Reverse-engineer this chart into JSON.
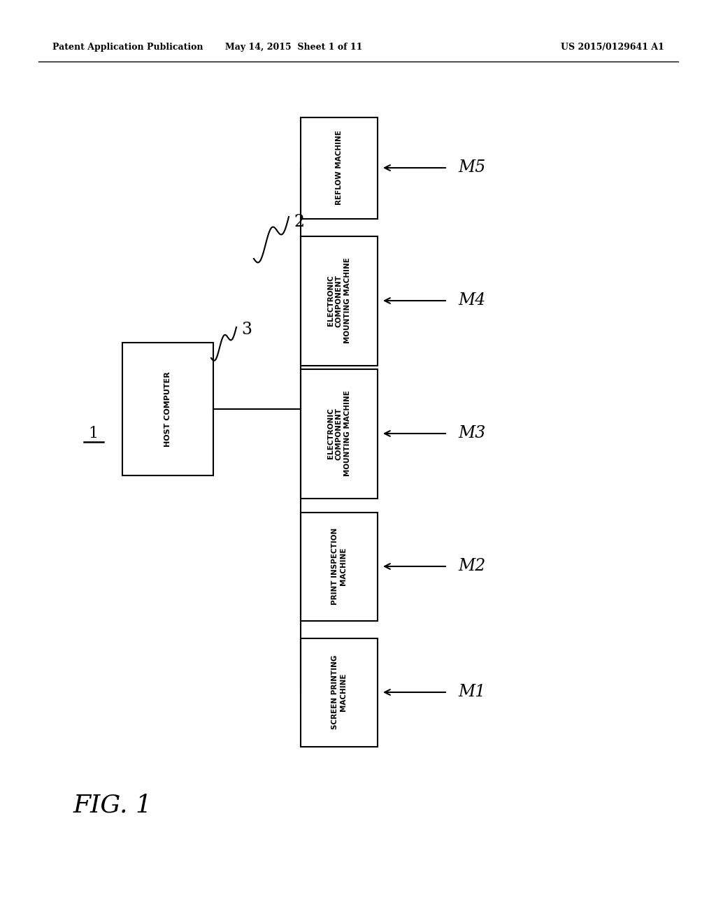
{
  "header_left": "Patent Application Publication",
  "header_mid": "May 14, 2015  Sheet 1 of 11",
  "header_right": "US 2015/0129641 A1",
  "fig_label": "FIG. 1",
  "network_label": "2",
  "system_label": "1",
  "host_label": "3",
  "host_text": "HOST COMPUTER",
  "machines": [
    {
      "label": "M1",
      "text": "SCREEN PRINTING\nMACHINE"
    },
    {
      "label": "M2",
      "text": "PRINT INSPECTION\nMACHINE"
    },
    {
      "label": "M3",
      "text": "ELECTRONIC\nCOMPONENT\nMOUNTING MACHINE"
    },
    {
      "label": "M4",
      "text": "ELECTRONIC\nCOMPONENT\nMOUNTING MACHINE"
    },
    {
      "label": "M5",
      "text": "REFLOW MACHINE"
    }
  ],
  "bg_color": "#ffffff",
  "box_color": "#000000",
  "line_color": "#000000",
  "text_color": "#000000"
}
